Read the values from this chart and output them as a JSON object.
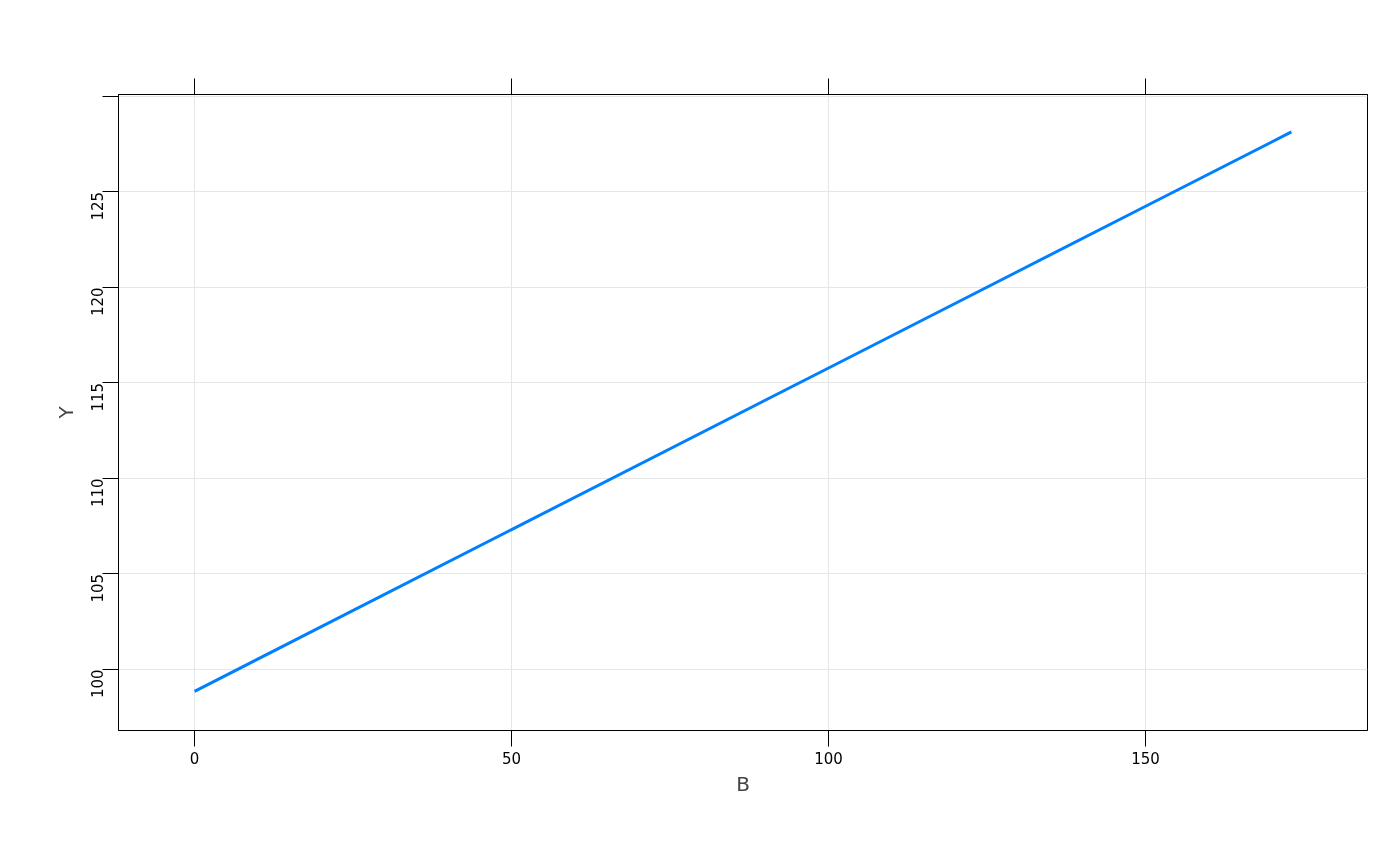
{
  "chart_data": {
    "type": "line",
    "xlabel": "B",
    "ylabel": "Y",
    "x": [
      0,
      50,
      100,
      150,
      173
    ],
    "series": [
      {
        "color": "#0080ff",
        "values": [
          98.85,
          107.32,
          115.78,
          124.25,
          128.14
        ]
      }
    ],
    "xlim": [
      -12,
      185
    ],
    "ylim": [
      96.8,
      130.1
    ],
    "xticks": [
      0,
      50,
      100,
      150
    ],
    "yticks": [
      100,
      105,
      110,
      115,
      120,
      125,
      {
        "value": 130,
        "label": null
      }
    ],
    "grid": true,
    "marker": "none",
    "line_style": "solid"
  }
}
